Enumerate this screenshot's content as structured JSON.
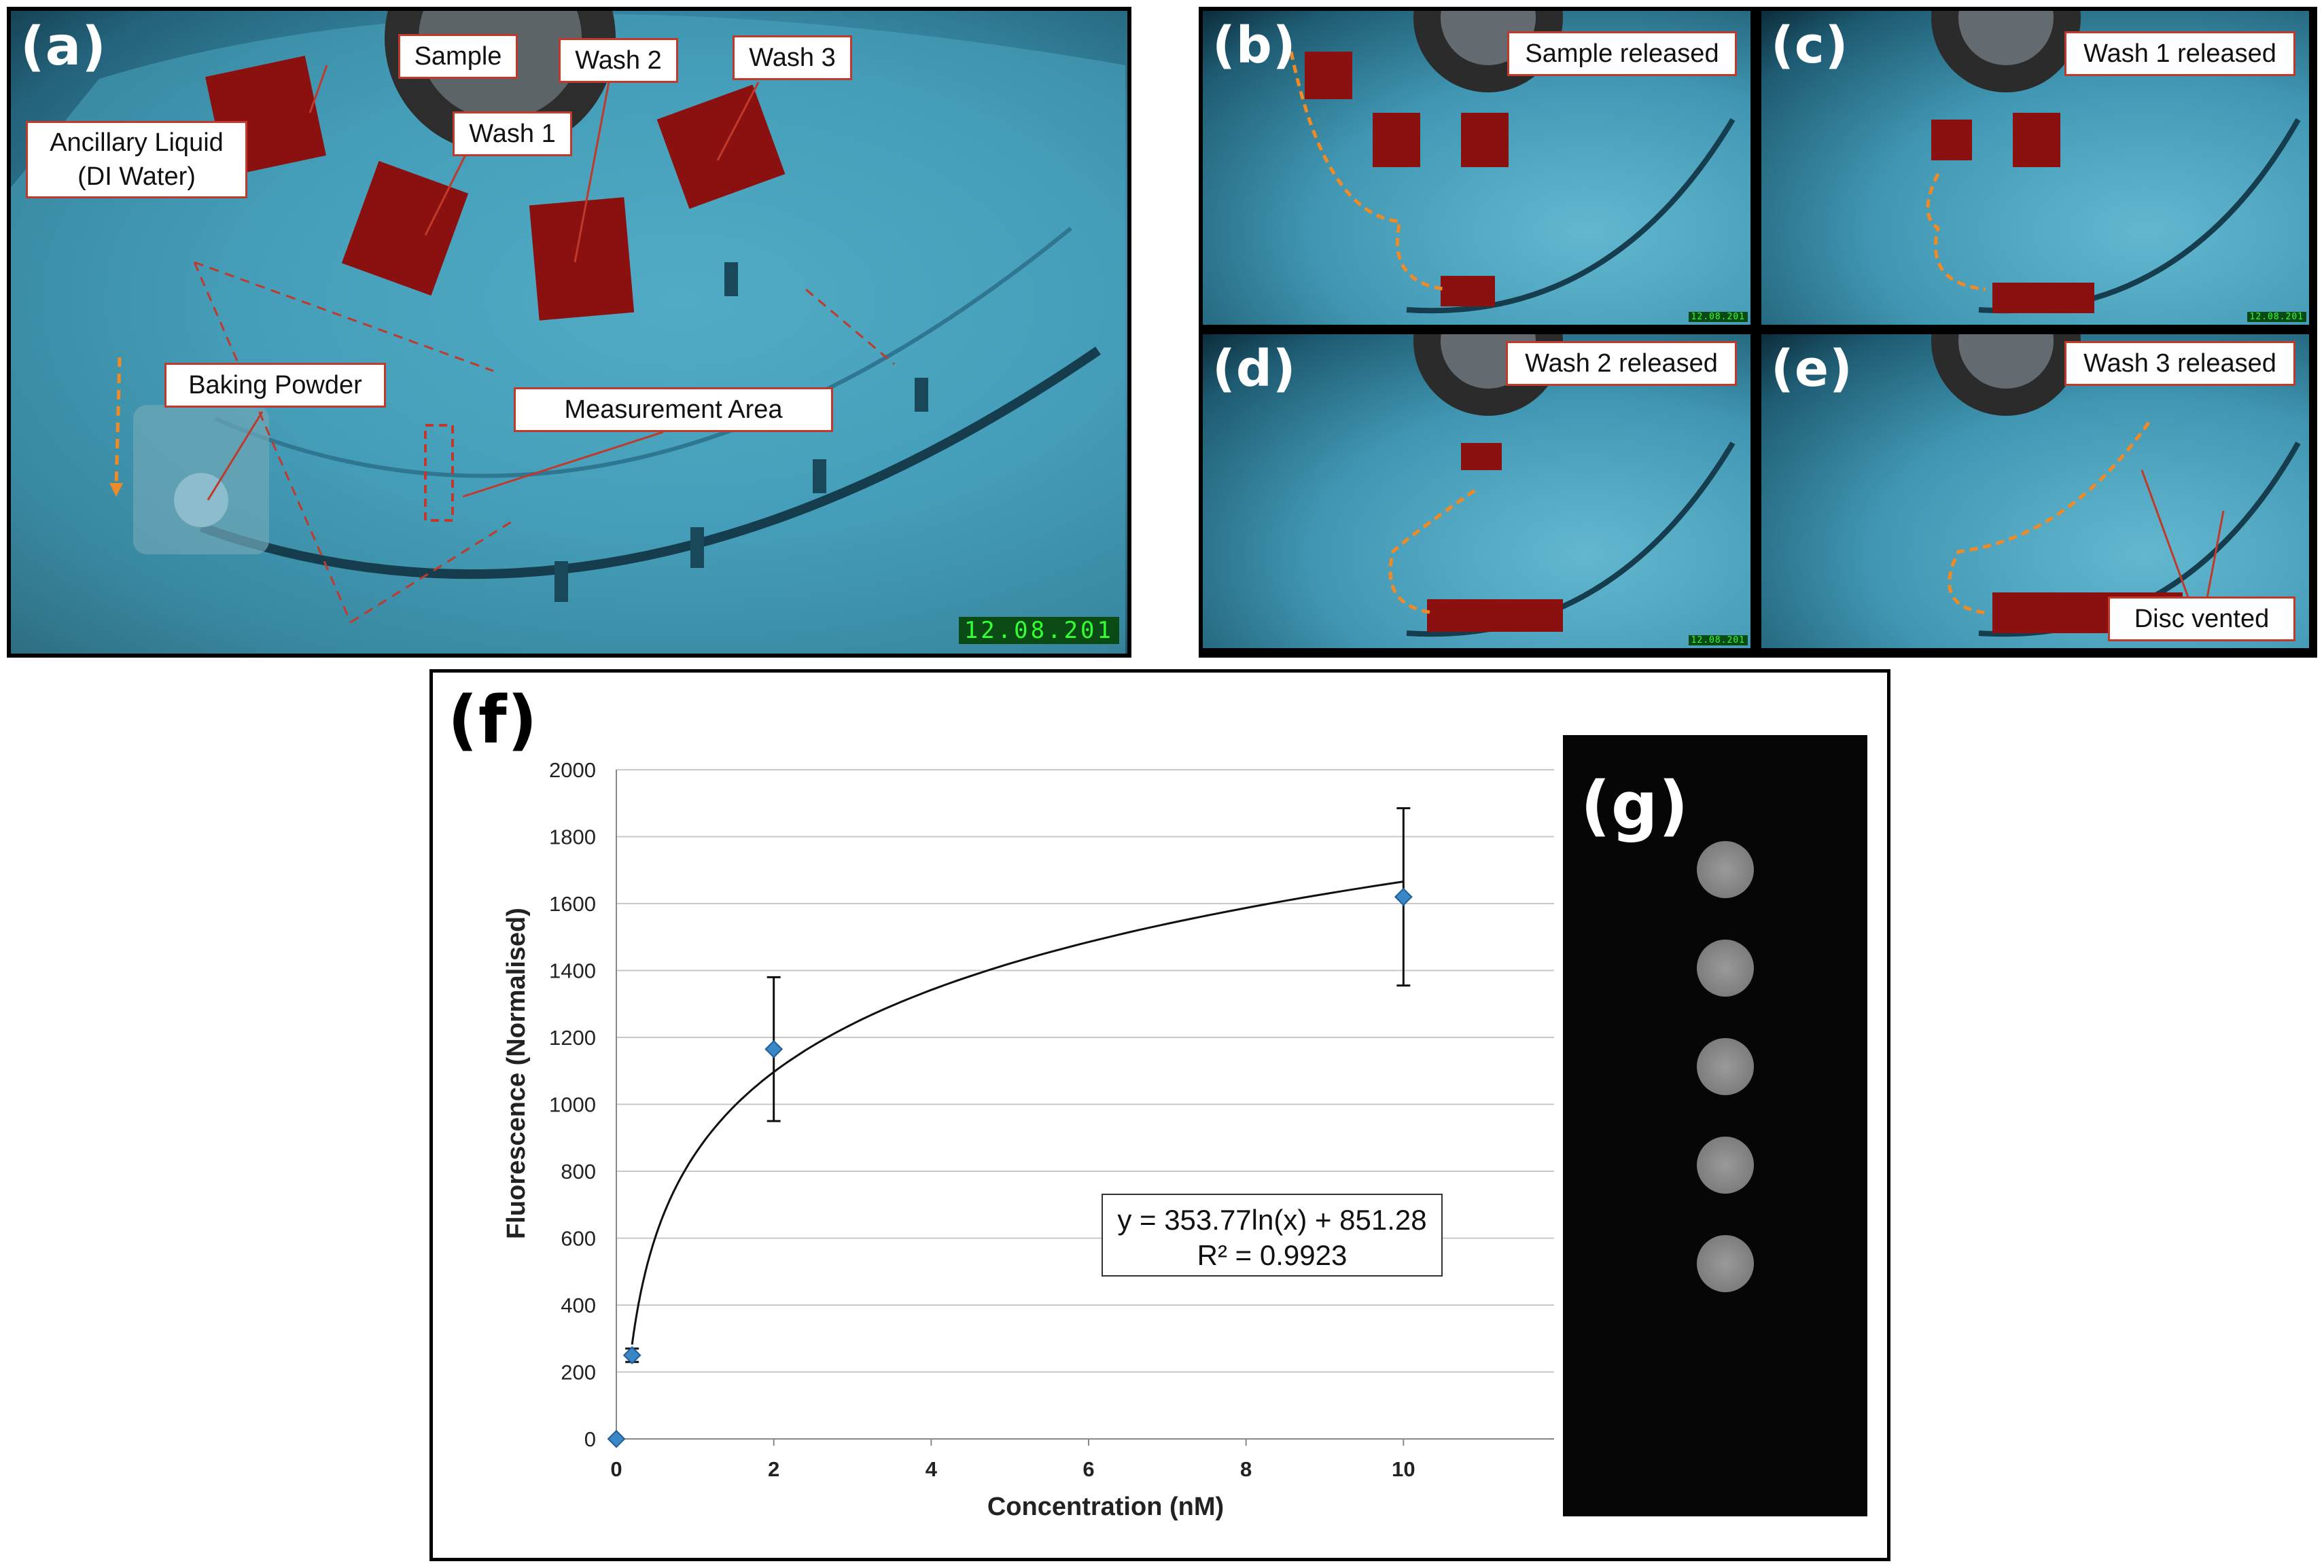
{
  "panel_a": {
    "label": "(a)",
    "callouts": {
      "sample": "Sample",
      "wash1": "Wash 1",
      "wash2": "Wash 2",
      "wash3": "Wash 3",
      "ancillary_line1": "Ancillary Liquid",
      "ancillary_line2": "(DI Water)",
      "baking_powder": "Baking Powder",
      "measurement_area": "Measurement Area"
    },
    "timestamp": "12.08.201"
  },
  "subpanels": [
    {
      "label": "(b)",
      "caption": "Sample released",
      "timestamp": "12.08.201"
    },
    {
      "label": "(c)",
      "caption": "Wash 1 released",
      "timestamp": "12.08.201"
    },
    {
      "label": "(d)",
      "caption": "Wash 2 released",
      "timestamp": "12.08.201"
    },
    {
      "label": "(e)",
      "caption": "Wash 3 released",
      "extra_callout": "Disc vented"
    }
  ],
  "panel_f": {
    "label": "(f)"
  },
  "panel_g": {
    "label": "(g)"
  },
  "colors": {
    "disc": "#3f96b2",
    "reservoir_red": "#8b1010",
    "callout_border": "#c0392b",
    "arrow_orange": "#f08a24",
    "marker": "#3a87c8",
    "timestamp_text": "#33ff33"
  },
  "chart_data": {
    "type": "scatter",
    "xlabel": "Concentration (nM)",
    "ylabel": "Fluorescence (Normalised)",
    "xlim": [
      0,
      12
    ],
    "ylim": [
      0,
      2000
    ],
    "x_ticks": [
      0,
      2,
      4,
      6,
      8,
      10
    ],
    "y_ticks": [
      0,
      200,
      400,
      600,
      800,
      1000,
      1200,
      1400,
      1600,
      1800,
      2000
    ],
    "points": [
      {
        "x": 0,
        "y": 0
      },
      {
        "x": 0.2,
        "y": 250,
        "err": 20
      },
      {
        "x": 2,
        "y": 1165,
        "err": 215
      },
      {
        "x": 10,
        "y": 1620,
        "err": 265
      }
    ],
    "trendline": {
      "type": "log",
      "a": 353.77,
      "b": 851.28,
      "x_from": 0.2,
      "x_to": 10
    },
    "equation": "y = 353.77ln(x) + 851.28",
    "r_squared": "R² = 0.9923",
    "grid": true
  }
}
